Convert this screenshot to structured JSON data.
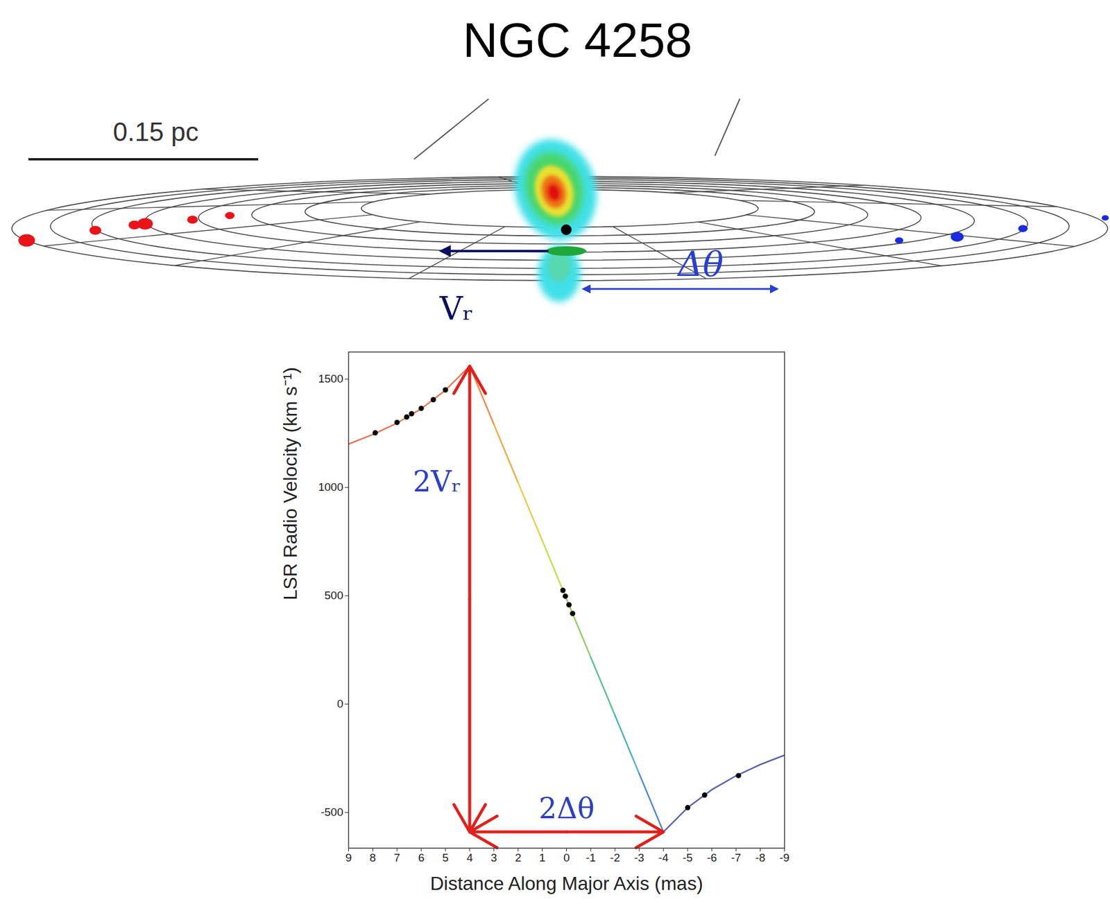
{
  "diagram": {
    "scale_bar": "0.15 pc",
    "velocity_label": "Vᵣ",
    "angle_label": "Δθ"
  },
  "chart_data": {
    "type": "line",
    "title": "NGC 4258",
    "x_label": "Distance Along Major Axis (mas)",
    "y_label": "LSR Radio Velocity (km s⁻¹)",
    "xlim": [
      9,
      -9
    ],
    "xticks": [
      9,
      8,
      7,
      6,
      5,
      4,
      3,
      2,
      1,
      0,
      -1,
      -2,
      -3,
      -4,
      -5,
      -6,
      -7,
      -8,
      -9
    ],
    "ylim": [
      -665,
      1625
    ],
    "yticks": [
      -500,
      0,
      500,
      1000,
      1500
    ],
    "series": [
      {
        "color": "#e8764e",
        "x": [
          9,
          8,
          7,
          6,
          5,
          4
        ],
        "values": [
          1200,
          1244,
          1297,
          1363,
          1449,
          1560
        ]
      },
      {
        "colors": [
          "#f0884a",
          "#f0a848",
          "#e8cc48",
          "#c8dc50",
          "#8cd060",
          "#58c090",
          "#48b0c8",
          "#4a88d0",
          "#5a60c0"
        ],
        "x": [
          4,
          3,
          2,
          1,
          0,
          -1,
          -2,
          -3,
          -4
        ],
        "values": [
          1560,
          1291,
          1022,
          754,
          485,
          216,
          -52,
          -321,
          -590
        ]
      },
      {
        "color": "#5a5fb0",
        "x": [
          -4,
          -5,
          -6,
          -7,
          -8,
          -9
        ],
        "values": [
          -590,
          -478,
          -395,
          -331,
          -279,
          -236
        ]
      },
      {
        "type": "scatter",
        "marker": "circle",
        "color": "#000000",
        "x": [
          7.9,
          7.0,
          6.6,
          6.4,
          6.0,
          5.5,
          5.0,
          0.15,
          0.05,
          -0.1,
          -0.25,
          -5.0,
          -5.7,
          -7.1
        ],
        "values": [
          1252,
          1300,
          1325,
          1340,
          1365,
          1405,
          1450,
          525,
          498,
          458,
          418,
          -478,
          -420,
          -330
        ]
      }
    ],
    "annotations": [
      {
        "text": "2Vᵣ",
        "x": [
          4,
          4
        ],
        "y": [
          -590,
          1560
        ]
      },
      {
        "text": "2Δθ",
        "x": [
          4,
          -4
        ],
        "y": [
          -590,
          -590
        ]
      }
    ]
  }
}
